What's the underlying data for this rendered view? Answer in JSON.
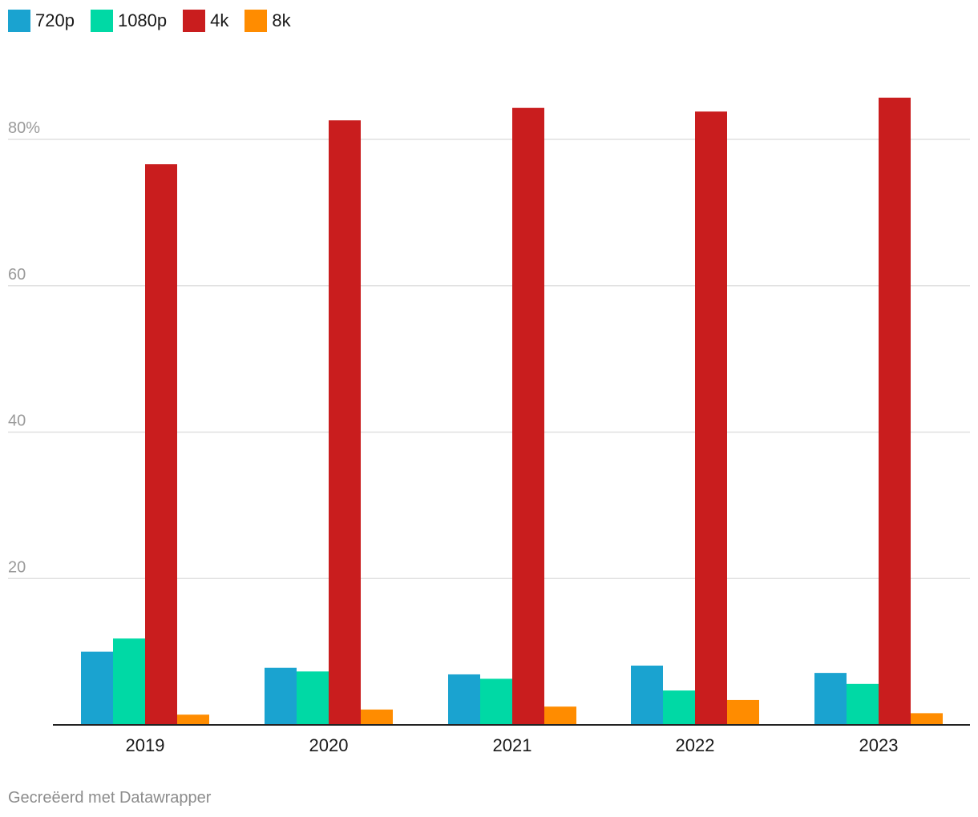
{
  "colors": {
    "720p": "#1aa3d0",
    "1080p": "#00d9a5",
    "4k": "#c91d1e",
    "8k": "#ff8c00",
    "grid": "#e0e0e0",
    "axis": "#222222",
    "tick_label": "#9a9a9a",
    "category_label": "#1a1a1a"
  },
  "legend": {
    "items": [
      {
        "label": "720p"
      },
      {
        "label": "1080p"
      },
      {
        "label": "4k"
      },
      {
        "label": "8k"
      }
    ]
  },
  "footer": {
    "credit": "Gecreëerd met Datawrapper"
  },
  "chart_data": {
    "type": "bar",
    "categories": [
      "2019",
      "2020",
      "2021",
      "2022",
      "2023"
    ],
    "series": [
      {
        "name": "720p",
        "values": [
          10.0,
          7.8,
          6.9,
          8.1,
          7.1
        ]
      },
      {
        "name": "1080p",
        "values": [
          11.8,
          7.3,
          6.3,
          4.7,
          5.6
        ]
      },
      {
        "name": "4k",
        "values": [
          76.6,
          82.6,
          84.3,
          83.8,
          85.7
        ]
      },
      {
        "name": "8k",
        "values": [
          1.4,
          2.1,
          2.5,
          3.4,
          1.6
        ]
      }
    ],
    "ylim": [
      0,
      90
    ],
    "yticks": [
      20,
      40,
      60,
      80
    ],
    "ytick_labels": [
      "20",
      "40",
      "60",
      "80%"
    ],
    "grid": true,
    "legend_position": "top-left",
    "title": "",
    "xlabel": "",
    "ylabel": ""
  }
}
